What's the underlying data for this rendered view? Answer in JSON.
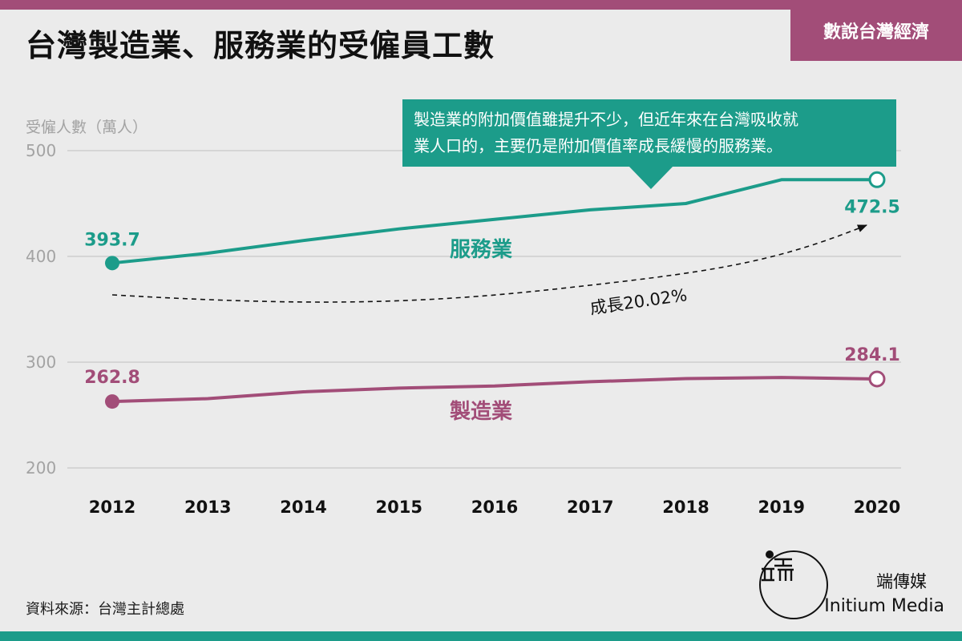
{
  "header": {
    "title": "台灣製造業、服務業的受僱員工數",
    "badge": "數說台灣經濟"
  },
  "annotation": {
    "callout_line1": "製造業的附加價值雖提升不少，但近年來在台灣吸收就",
    "callout_line2": "業人口的，主要仍是附加價值率成長緩慢的服務業。",
    "growth_label": "成長20.02%"
  },
  "footer": {
    "source": "資料來源：台灣主計總處",
    "brand_cn": "端傳媒",
    "brand_en": "Initium Media"
  },
  "colors": {
    "services": "#1c9c8a",
    "manufacturing": "#a24d78",
    "axis_text": "#a3a3a3",
    "grid": "#c8c8c8"
  },
  "chart_data": {
    "type": "line",
    "ylabel": "受僱人數（萬人）",
    "categories": [
      "2012",
      "2013",
      "2014",
      "2015",
      "2016",
      "2017",
      "2018",
      "2019",
      "2020"
    ],
    "ylim": [
      200,
      500
    ],
    "yticks": [
      200,
      300,
      400,
      500
    ],
    "grid": true,
    "series": [
      {
        "name": "服務業",
        "values": [
          393.7,
          403,
          415,
          426,
          435,
          444,
          450,
          472.5,
          472.5
        ],
        "start_label": "393.7",
        "end_label": "472.5"
      },
      {
        "name": "製造業",
        "values": [
          262.8,
          265.5,
          272,
          275.5,
          277.5,
          281.5,
          284.5,
          285.5,
          284.1
        ],
        "start_label": "262.8",
        "end_label": "284.1"
      }
    ]
  }
}
